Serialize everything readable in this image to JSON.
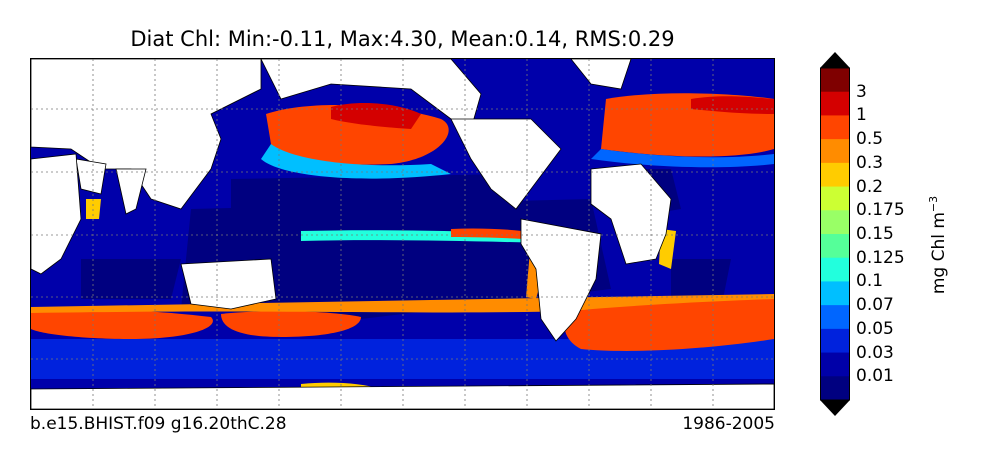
{
  "figure": {
    "title": "Diat Chl: Min:-0.11, Max:4.30, Mean:0.14, RMS:0.29",
    "case_name": "b.e15.BHIST.f09 g16.20thC.28",
    "period": "1986-2005"
  },
  "colorbar": {
    "unit_base": "mg Chl m",
    "unit_exponent": "−3",
    "levels": [
      "3",
      "1",
      "0.5",
      "0.3",
      "0.2",
      "0.175",
      "0.15",
      "0.125",
      "0.1",
      "0.07",
      "0.05",
      "0.03",
      "0.01"
    ],
    "colors": [
      "#7f0000",
      "#d40000",
      "#ff4500",
      "#ff8c00",
      "#ffcc00",
      "#ccff33",
      "#99ff66",
      "#55ff99",
      "#22ffdd",
      "#00bfff",
      "#0066ff",
      "#0022dd",
      "#0000a8",
      "#000080"
    ],
    "extend_colors": [
      "#000000",
      "#000000"
    ]
  },
  "map": {
    "projection": "cylindrical",
    "land_color": "#ffffff",
    "ocean_background": "#0000aa",
    "gridlines": "dotted"
  }
}
